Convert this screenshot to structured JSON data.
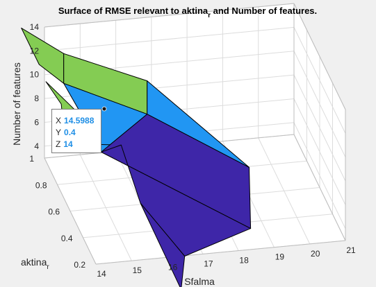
{
  "chart_data": {
    "type": "surface",
    "title": "Surface of RMSE relevant to aktina",
    "title_sub": "r",
    "title_tail": " and Number of features.",
    "xlabel": "Sfalma",
    "ylabel": "aktina",
    "ylabel_sub": "r",
    "zlabel": "Number of features",
    "x_ticks": [
      "14",
      "15",
      "16",
      "17",
      "18",
      "19",
      "20",
      "21"
    ],
    "y_ticks": [
      "0.2",
      "0.4",
      "0.6",
      "0.8",
      "1"
    ],
    "z_ticks": [
      "4",
      "6",
      "8",
      "10",
      "12",
      "14"
    ],
    "xlim": [
      14,
      21
    ],
    "ylim": [
      0.2,
      1
    ],
    "zlim": [
      3,
      14
    ],
    "grid": true,
    "colormap": [
      "#3e26a8",
      "#2196f3",
      "#84cc53"
    ],
    "surface_vertices": [
      {
        "x": 18.75,
        "y": 0.45,
        "z": 7.0
      },
      {
        "x": 16.52,
        "y": 0.8,
        "z": 8.2
      },
      {
        "x": 14.45,
        "y": 0.95,
        "z": 9.7
      },
      {
        "x": 13.85,
        "y": 1.0,
        "z": 10.9
      },
      {
        "x": 13.35,
        "y": 1.0,
        "z": 14.1
      },
      {
        "x": 14.45,
        "y": 0.95,
        "z": 12.2
      },
      {
        "x": 16.52,
        "y": 0.8,
        "z": 11.0
      },
      {
        "x": 15.7,
        "y": 0.75,
        "z": 6.4
      },
      {
        "x": 15.88,
        "y": 0.55,
        "z": 3.7
      },
      {
        "x": 16.39,
        "y": 0.2,
        "z": 0.2
      },
      {
        "x": 16.67,
        "y": 0.3,
        "z": 1.8
      },
      {
        "x": 18.52,
        "y": 0.3,
        "z": 3.6
      },
      {
        "x": 15.01,
        "y": 0.95,
        "z": 6.6
      },
      {
        "x": 15.32,
        "y": 0.85,
        "z": 4.8
      },
      {
        "x": 14.4,
        "y": 0.9,
        "z": 5.2
      },
      {
        "x": 14.47,
        "y": 1.0,
        "z": 7.4
      },
      {
        "x": 14.04,
        "y": 1.0,
        "z": 9.4
      }
    ],
    "surface_faces": [
      {
        "v": [
          4,
          5,
          2,
          3
        ],
        "c": "#84cc53"
      },
      {
        "v": [
          5,
          6,
          1,
          2
        ],
        "c": "#84cc53"
      },
      {
        "v": [
          6,
          0,
          1
        ],
        "c": "#2196f3"
      },
      {
        "v": [
          15,
          16,
          12,
          14
        ],
        "c": "#84cc53"
      },
      {
        "v": [
          2,
          1,
          13,
          12
        ],
        "c": "#2196f3"
      },
      {
        "v": [
          14,
          12,
          13,
          7
        ],
        "c": "#2196f3"
      },
      {
        "v": [
          1,
          0,
          11,
          13
        ],
        "c": "#3e26a8"
      },
      {
        "v": [
          13,
          11,
          10,
          8,
          7
        ],
        "c": "#3e26a8"
      },
      {
        "v": [
          8,
          10,
          9
        ],
        "c": "#3e26a8"
      }
    ],
    "datatip": {
      "point": {
        "x": 14.5988,
        "y": 0.4,
        "z": 14
      },
      "rows": [
        {
          "label": "X",
          "value": "14.5988"
        },
        {
          "label": "Y",
          "value": "0.4"
        },
        {
          "label": "Z",
          "value": "14"
        }
      ]
    }
  }
}
